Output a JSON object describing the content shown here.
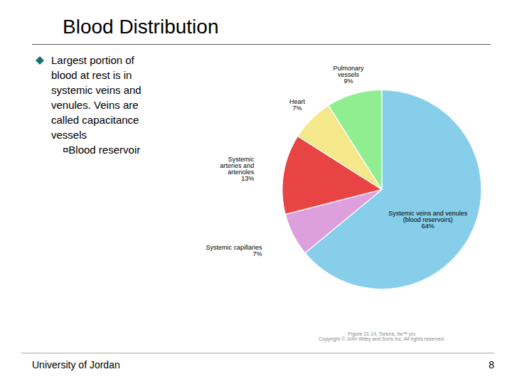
{
  "chart_data": {
    "type": "pie",
    "title": "Blood Distribution",
    "categories": [
      "Systemic veins and venules\n(blood reservoirs)",
      "Systemic capillaries",
      "Systemic\narteries and\narterioles",
      "Heart",
      "Pulmonary\nvessels"
    ],
    "values": [
      64,
      7,
      13,
      7,
      9
    ],
    "value_labels": [
      "64%",
      "7%",
      "13%",
      "7%",
      "9%"
    ],
    "data_labels": true,
    "colors": [
      "#87ceeb",
      "#dda0dd",
      "#e84444",
      "#f5e88a",
      "#90ee90"
    ],
    "annotations": {
      "bullet": [
        "Largest portion of",
        "blood at rest is in",
        "systemic veins and",
        "venules. Veins are",
        "called capacitance",
        "vessels"
      ],
      "sub_bullet": "¤Blood reservoir",
      "source": "Figure 21.14, Tortora, 9e™ p/c\nCopyright © John Wiley and Sons Inc. All rights reserved.",
      "footer": [
        "University of Jordan",
        "8"
      ]
    }
  }
}
